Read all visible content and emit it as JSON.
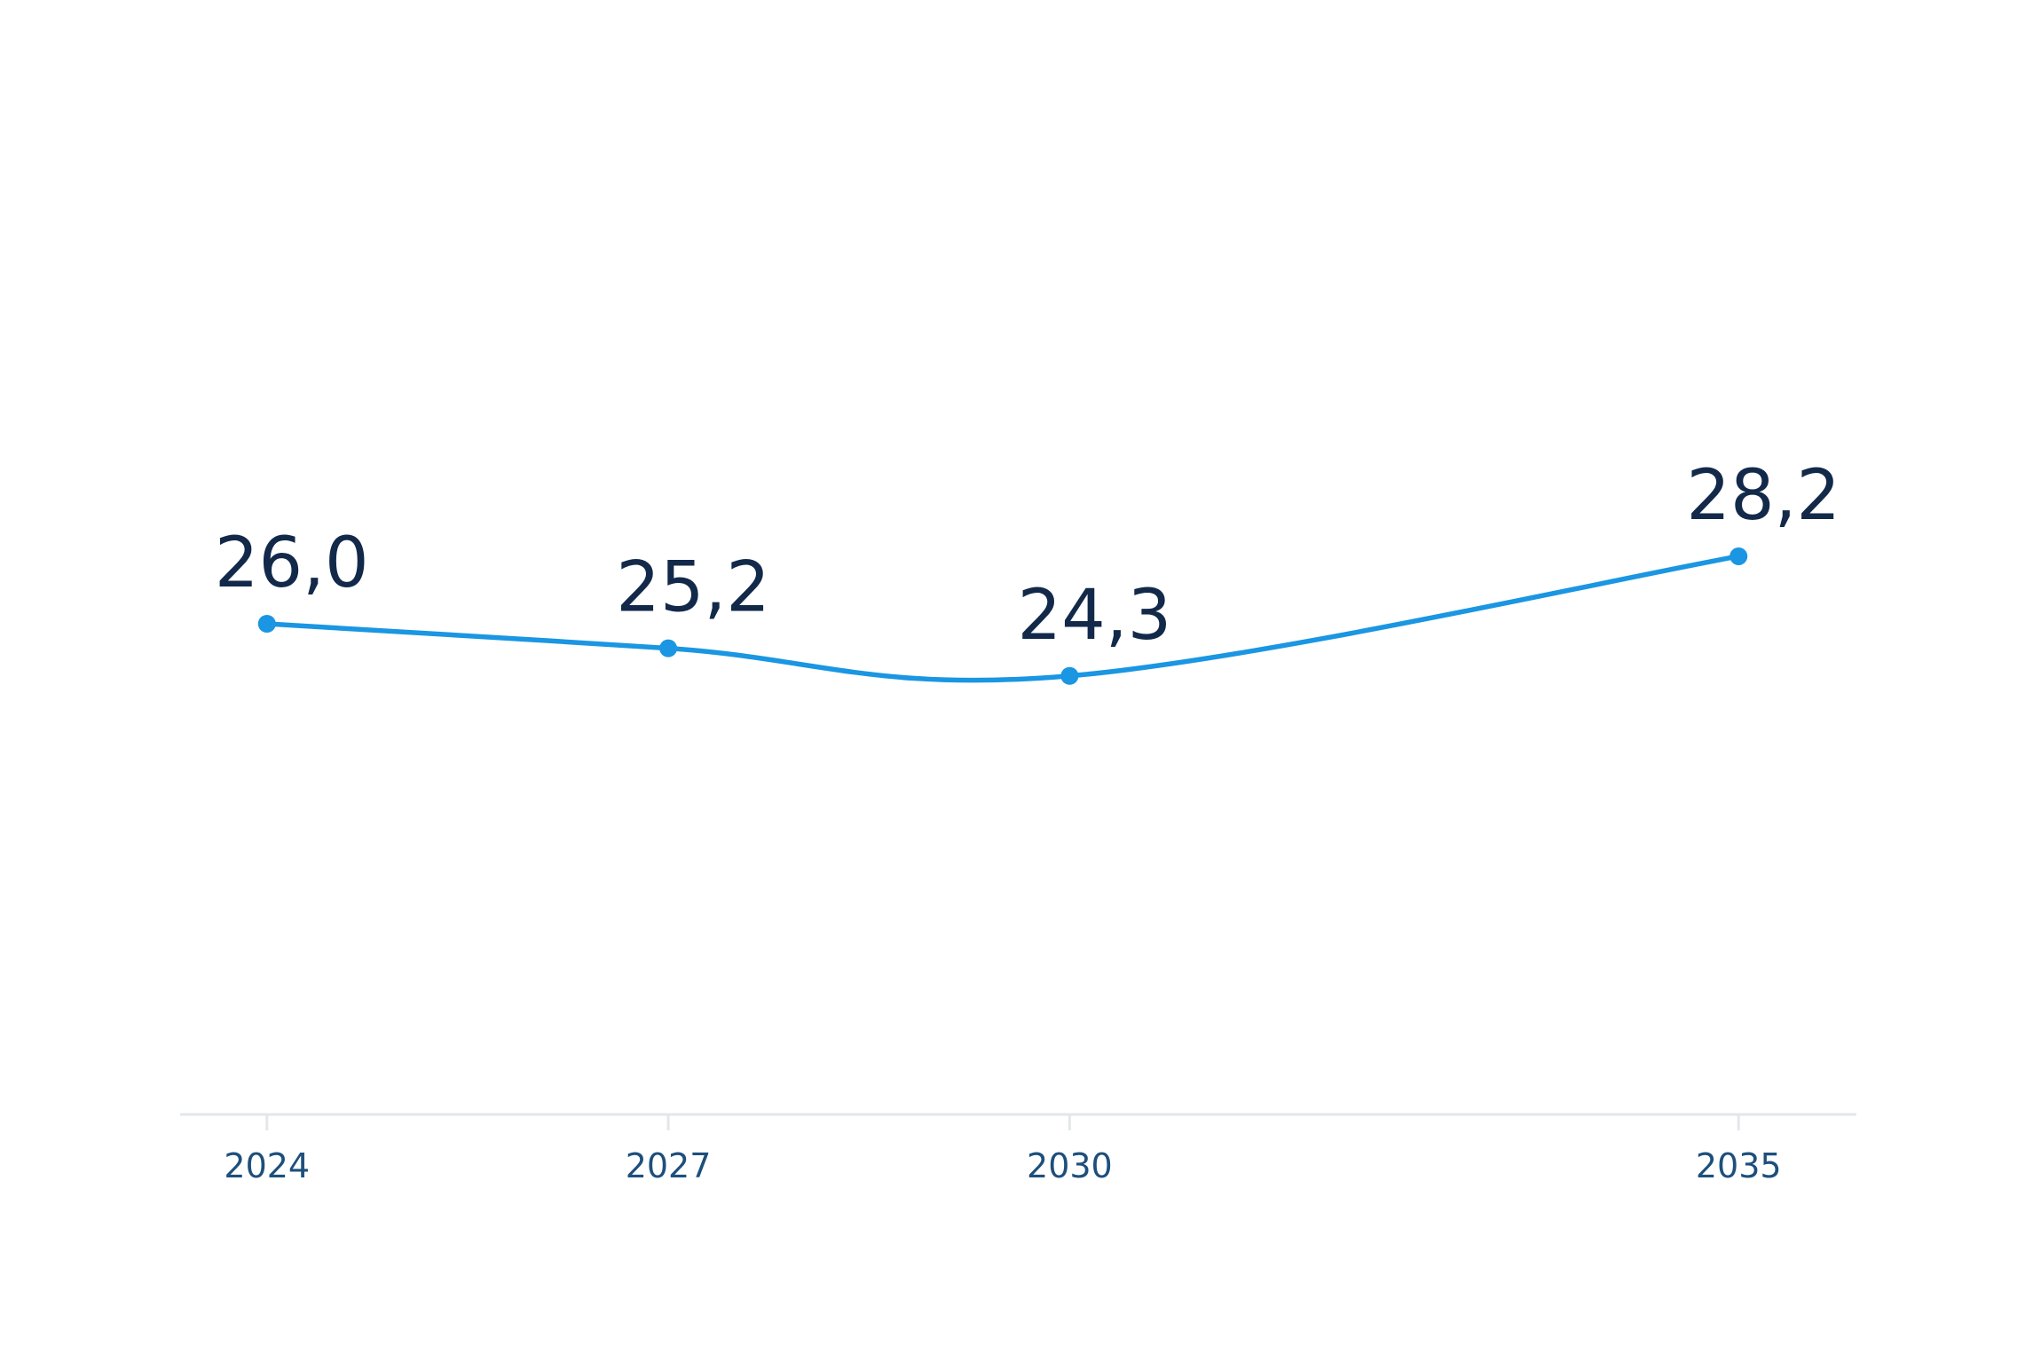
{
  "chart_data": {
    "type": "line",
    "x": [
      2024,
      2027,
      2030,
      2035
    ],
    "categories": [
      "2024",
      "2027",
      "2030",
      "2035"
    ],
    "values": [
      26.0,
      25.2,
      24.3,
      28.2
    ],
    "data_labels": [
      "26,0",
      "25,2",
      "24,3",
      "28,2"
    ],
    "title": "",
    "xlabel": "",
    "ylabel": "",
    "xlim": [
      2023,
      2036
    ],
    "ylim": [
      10,
      42
    ],
    "grid": false,
    "legend": "none",
    "colors": {
      "line": "#1a96e2",
      "marker": "#1a96e2",
      "data_label": "#12294a",
      "tick_label": "#1d4f7c",
      "axis": "#e3e7eb"
    }
  }
}
